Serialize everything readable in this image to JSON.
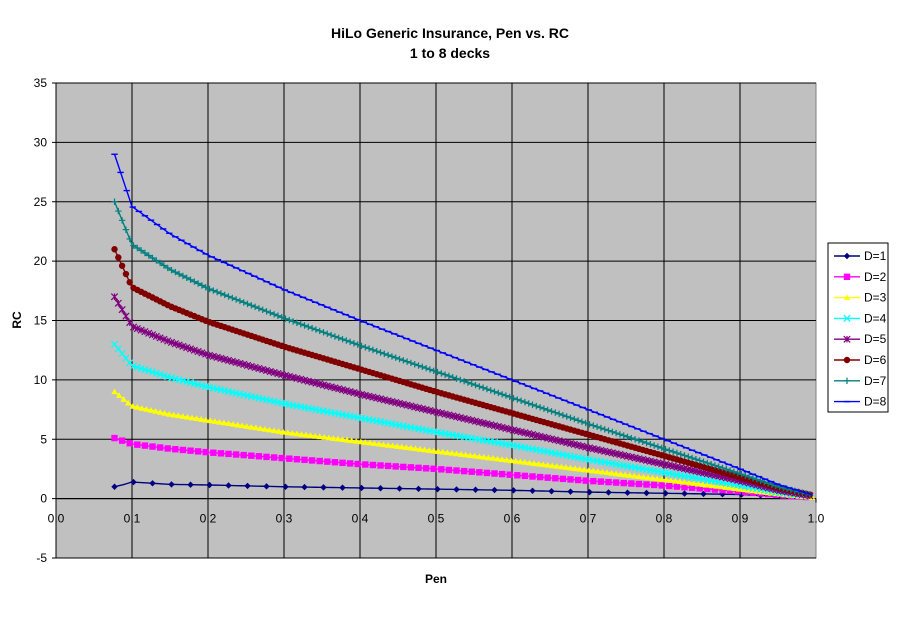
{
  "chart_data": {
    "type": "line",
    "title": "HiLo Generic Insurance, Pen vs. RC",
    "subtitle": "1 to 8 decks",
    "xlabel": "Pen",
    "ylabel": "RC",
    "xlim": [
      0.0,
      1.0
    ],
    "ylim": [
      -5,
      35
    ],
    "x_ticks": [
      0.0,
      0.1,
      0.2,
      0.3,
      0.4,
      0.5,
      0.6,
      0.7,
      0.8,
      0.9,
      1.0
    ],
    "x_tick_labels": [
      "0.0",
      "0.1",
      "0.2",
      "0.3",
      "0.4",
      "0.5",
      "0.6",
      "0.7",
      "0.8",
      "0.9",
      "1.0"
    ],
    "y_ticks": [
      -5,
      0,
      5,
      10,
      15,
      20,
      25,
      30,
      35
    ],
    "y_tick_labels": [
      "-5",
      "0",
      "5",
      "10",
      "15",
      "20",
      "25",
      "30",
      "35"
    ],
    "grid": true,
    "legend_position": "right",
    "plot_background": "#C0C0C0",
    "x_range_of_data": [
      0.077,
      0.995
    ],
    "series": [
      {
        "name": "D=1",
        "color": "#000080",
        "marker": "diamond",
        "x": [
          0.077,
          0.09,
          0.1,
          0.15,
          0.2,
          0.3,
          0.4,
          0.5,
          0.6,
          0.7,
          0.8,
          0.9,
          0.95,
          0.995
        ],
        "y": [
          1.0,
          1.2,
          1.4,
          1.2,
          1.15,
          1.0,
          0.9,
          0.8,
          0.7,
          0.55,
          0.45,
          0.35,
          0.2,
          0.3
        ]
      },
      {
        "name": "D=2",
        "color": "#FF00FF",
        "marker": "square",
        "x": [
          0.077,
          0.1,
          0.15,
          0.2,
          0.3,
          0.4,
          0.5,
          0.6,
          0.7,
          0.8,
          0.9,
          0.95,
          0.995
        ],
        "y": [
          5.1,
          4.6,
          4.2,
          3.9,
          3.4,
          2.9,
          2.5,
          2.0,
          1.5,
          1.1,
          0.6,
          0.3,
          0.1
        ]
      },
      {
        "name": "D=3",
        "color": "#FFFF00",
        "marker": "triangle",
        "x": [
          0.077,
          0.1,
          0.15,
          0.2,
          0.3,
          0.4,
          0.5,
          0.6,
          0.7,
          0.8,
          0.9,
          0.95,
          0.995
        ],
        "y": [
          9.0,
          7.8,
          7.1,
          6.6,
          5.6,
          4.8,
          4.0,
          3.2,
          2.4,
          1.6,
          0.8,
          0.4,
          0.1
        ]
      },
      {
        "name": "D=4",
        "color": "#00FFFF",
        "marker": "x",
        "x": [
          0.077,
          0.1,
          0.15,
          0.2,
          0.3,
          0.4,
          0.5,
          0.6,
          0.7,
          0.8,
          0.9,
          0.95,
          0.995
        ],
        "y": [
          13.0,
          11.2,
          10.2,
          9.4,
          8.0,
          6.8,
          5.6,
          4.5,
          3.3,
          2.2,
          1.1,
          0.5,
          0.2
        ]
      },
      {
        "name": "D=5",
        "color": "#800080",
        "marker": "star",
        "x": [
          0.077,
          0.1,
          0.15,
          0.2,
          0.3,
          0.4,
          0.5,
          0.6,
          0.7,
          0.8,
          0.9,
          0.95,
          0.995
        ],
        "y": [
          17.0,
          14.5,
          13.2,
          12.1,
          10.4,
          8.8,
          7.3,
          5.8,
          4.3,
          2.9,
          1.5,
          0.7,
          0.2
        ]
      },
      {
        "name": "D=6",
        "color": "#800000",
        "marker": "circle",
        "x": [
          0.077,
          0.1,
          0.15,
          0.2,
          0.3,
          0.4,
          0.5,
          0.6,
          0.7,
          0.8,
          0.9,
          0.95,
          0.995
        ],
        "y": [
          21.0,
          17.8,
          16.2,
          14.9,
          12.8,
          10.9,
          9.0,
          7.2,
          5.4,
          3.6,
          1.8,
          0.9,
          0.3
        ]
      },
      {
        "name": "D=7",
        "color": "#008080",
        "marker": "plus",
        "x": [
          0.077,
          0.1,
          0.15,
          0.2,
          0.3,
          0.4,
          0.5,
          0.6,
          0.7,
          0.8,
          0.9,
          0.95,
          0.995
        ],
        "y": [
          25.0,
          21.4,
          19.3,
          17.7,
          15.2,
          12.9,
          10.7,
          8.5,
          6.3,
          4.2,
          2.1,
          1.0,
          0.3
        ]
      },
      {
        "name": "D=8",
        "color": "#0000FF",
        "marker": "dash",
        "x": [
          0.077,
          0.1,
          0.15,
          0.2,
          0.3,
          0.4,
          0.5,
          0.6,
          0.7,
          0.8,
          0.9,
          0.95,
          0.995
        ],
        "y": [
          29.0,
          24.6,
          22.3,
          20.5,
          17.6,
          15.0,
          12.5,
          10.0,
          7.5,
          5.0,
          2.5,
          1.2,
          0.3
        ]
      }
    ]
  }
}
